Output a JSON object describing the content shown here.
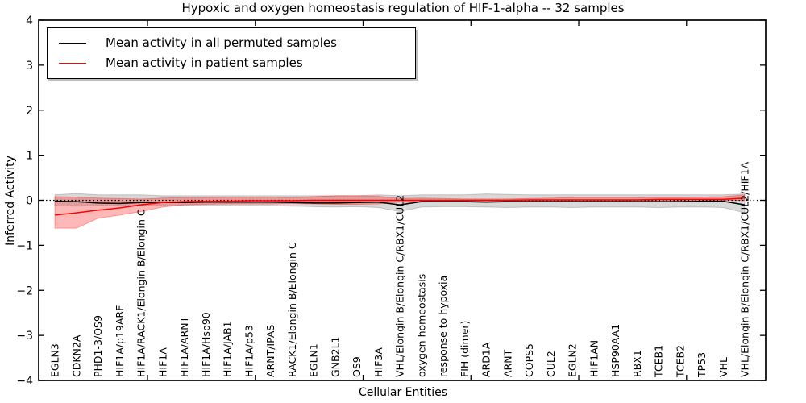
{
  "chart_data": {
    "type": "line",
    "title": "Hypoxic and oxygen homeostasis regulation of HIF-1-alpha -- 32 samples",
    "xlabel": "Cellular Entities",
    "ylabel": "Inferred Activity",
    "ylim": [
      -4,
      4
    ],
    "yticks": [
      4,
      3,
      2,
      1,
      0,
      -1,
      -2,
      -3,
      -4
    ],
    "xticks": [
      4.3,
      9.3,
      14.3,
      19.3,
      24.3,
      29.3
    ],
    "grid": false,
    "zero_line": "dotted",
    "legend_position": "upper left",
    "categories": [
      "EGLN3",
      "CDKN2A",
      "PHD1-3/OS9",
      "HIF1A/p19ARF",
      "HIF1A/RACK1/Elongin B/Elongin C",
      "HIF1A",
      "HIF1A/ARNT",
      "HIF1A/Hsp90",
      "HIF1A/JAB1",
      "HIF1A/p53",
      "ARNT/IPAS",
      "RACK1/Elongin B/Elongin C",
      "EGLN1",
      "GNB2L1",
      "OS9",
      "HIF3A",
      "VHL/Elongin B/Elongin C/RBX1/CUL2",
      "oxygen homeostasis",
      "response to hypoxia",
      "FIH (dimer)",
      "ARD1A",
      "ARNT",
      "COPS5",
      "CUL2",
      "EGLN2",
      "HIF1AN",
      "HSP90AA1",
      "RBX1",
      "TCEB1",
      "TCEB2",
      "TP53",
      "VHL",
      "VHL/Elongin B/Elongin C/RBX1/CUL2/HIF1A"
    ],
    "series": [
      {
        "name": "Mean activity in all permuted samples",
        "color": "#000000",
        "band_fill": "rgba(0,0,0,0.15)",
        "band_edge": "rgba(0,0,0,0.18)",
        "values": [
          -0.02,
          -0.03,
          -0.06,
          -0.07,
          -0.05,
          -0.05,
          -0.05,
          -0.04,
          -0.04,
          -0.04,
          -0.04,
          -0.05,
          -0.06,
          -0.06,
          -0.05,
          -0.04,
          -0.1,
          -0.03,
          -0.03,
          -0.03,
          -0.04,
          -0.03,
          -0.03,
          -0.03,
          -0.03,
          -0.03,
          -0.03,
          -0.03,
          -0.03,
          -0.03,
          -0.02,
          -0.02,
          -0.1
        ],
        "band_upper": [
          0.12,
          0.15,
          0.12,
          0.12,
          0.12,
          0.1,
          0.1,
          0.1,
          0.1,
          0.1,
          0.1,
          0.1,
          0.1,
          0.1,
          0.1,
          0.12,
          0.1,
          0.12,
          0.12,
          0.12,
          0.14,
          0.13,
          0.12,
          0.12,
          0.12,
          0.12,
          0.12,
          0.12,
          0.12,
          0.12,
          0.12,
          0.12,
          0.14
        ],
        "band_lower": [
          -0.12,
          -0.13,
          -0.12,
          -0.12,
          -0.12,
          -0.12,
          -0.12,
          -0.12,
          -0.12,
          -0.12,
          -0.12,
          -0.13,
          -0.14,
          -0.15,
          -0.14,
          -0.16,
          -0.25,
          -0.15,
          -0.14,
          -0.14,
          -0.15,
          -0.16,
          -0.15,
          -0.15,
          -0.16,
          -0.15,
          -0.15,
          -0.15,
          -0.16,
          -0.15,
          -0.15,
          -0.16,
          -0.28
        ]
      },
      {
        "name": "Mean activity in patient samples",
        "color": "#ff0000",
        "band_fill": "rgba(255,0,0,0.28)",
        "band_edge": "rgba(255,0,0,0.32)",
        "values": [
          -0.33,
          -0.28,
          -0.22,
          -0.17,
          -0.1,
          -0.05,
          -0.03,
          -0.02,
          -0.02,
          -0.01,
          -0.01,
          -0.01,
          0,
          0,
          0,
          0,
          0,
          0,
          0,
          0,
          0,
          0,
          0.01,
          0.01,
          0.01,
          0.01,
          0.01,
          0.01,
          0.02,
          0.02,
          0.02,
          0.02,
          0.05
        ],
        "band_upper": [
          0.08,
          0.07,
          0.05,
          0.04,
          0.03,
          0.05,
          0.06,
          0.06,
          0.07,
          0.07,
          0.07,
          0.06,
          0.08,
          0.1,
          0.1,
          0.09,
          0.04,
          0.05,
          0.04,
          0.03,
          0.03,
          0.03,
          0.04,
          0.05,
          0.06,
          0.06,
          0.06,
          0.06,
          0.06,
          0.06,
          0.07,
          0.08,
          0.12
        ],
        "band_lower": [
          -0.62,
          -0.62,
          -0.4,
          -0.33,
          -0.25,
          -0.15,
          -0.1,
          -0.09,
          -0.08,
          -0.08,
          -0.08,
          -0.07,
          -0.08,
          -0.09,
          -0.09,
          -0.08,
          -0.04,
          -0.04,
          -0.03,
          -0.03,
          -0.03,
          -0.02,
          -0.02,
          -0.02,
          -0.02,
          -0.02,
          -0.02,
          -0.01,
          -0.01,
          -0.01,
          -0.01,
          0,
          0
        ]
      }
    ]
  }
}
